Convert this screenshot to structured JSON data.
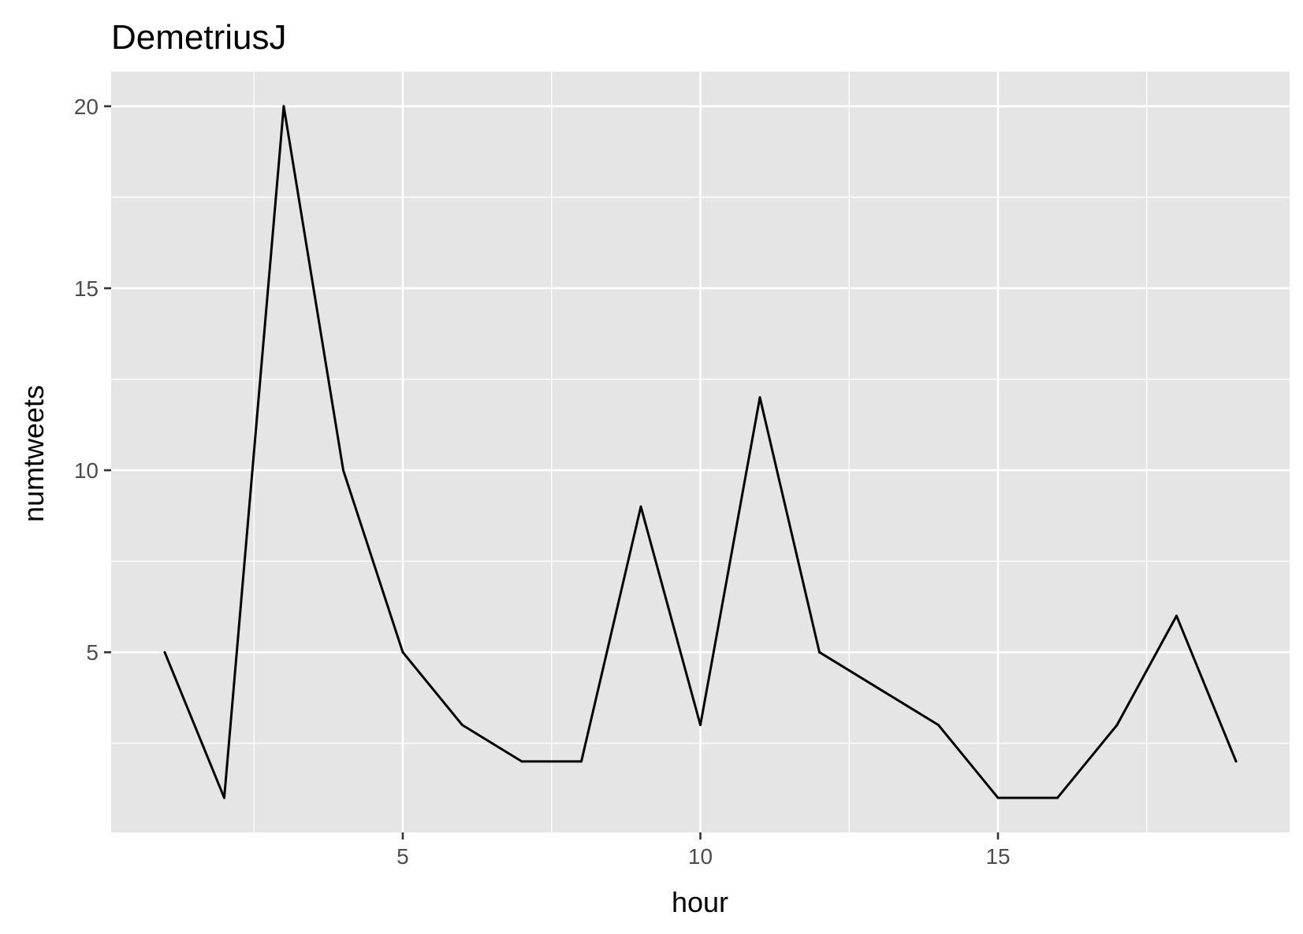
{
  "chart_data": {
    "type": "line",
    "title": "DemetriusJ",
    "xlabel": "hour",
    "ylabel": "numtweets",
    "x": [
      1,
      2,
      3,
      4,
      5,
      6,
      7,
      8,
      9,
      10,
      11,
      12,
      13,
      14,
      15,
      16,
      17,
      18,
      19
    ],
    "series": [
      {
        "values": [
          5,
          1,
          20,
          10,
          5,
          3,
          2,
          2,
          9,
          3,
          12,
          5,
          4,
          3,
          1,
          1,
          3,
          6,
          2
        ]
      }
    ],
    "x_ticks": [
      5,
      10,
      15
    ],
    "x_tick_labels": [
      "5",
      "10",
      "15"
    ],
    "y_ticks": [
      5,
      10,
      15,
      20
    ],
    "y_tick_labels": [
      "5",
      "10",
      "15",
      "20"
    ],
    "xlim": [
      0.1,
      19.9
    ],
    "ylim": [
      0.05,
      20.95
    ],
    "grid": true,
    "colors": {
      "panel": "#e5e5e5",
      "grid": "#ffffff",
      "line": "#000000",
      "tick_label": "#4d4d4d"
    }
  }
}
